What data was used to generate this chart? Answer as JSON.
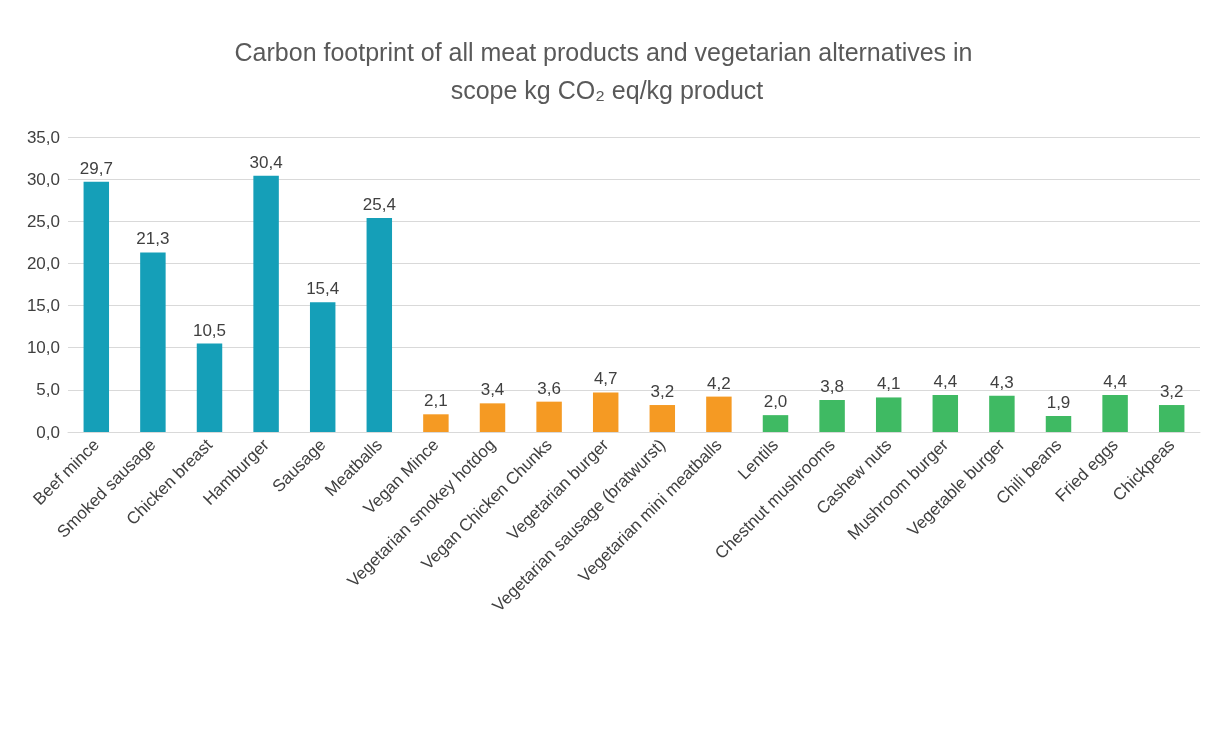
{
  "chart_data": {
    "type": "bar",
    "title": "Carbon footprint of all meat products and vegetarian alternatives in scope kg CO₂ eq/kg product",
    "categories": [
      "Beef mince",
      "Smoked sausage",
      "Chicken breast",
      "Hamburger",
      "Sausage",
      "Meatballs",
      "Vegan Mince",
      "Vegetarian smokey hotdog",
      "Vegan Chicken Chunks",
      "Vegetarian burger",
      "Vegetarian sausage (bratwurst)",
      "Vegetarian mini meatballs",
      "Lentils",
      "Chestnut mushrooms",
      "Cashew nuts",
      "Mushroom burger",
      "Vegetable burger",
      "Chili beans",
      "Fried eggs",
      "Chickpeas"
    ],
    "values": [
      29.7,
      21.3,
      10.5,
      30.4,
      15.4,
      25.4,
      2.1,
      3.4,
      3.6,
      4.7,
      3.2,
      4.2,
      2.0,
      3.8,
      4.1,
      4.4,
      4.3,
      1.9,
      4.4,
      3.2
    ],
    "value_labels": [
      "29,7",
      "21,3",
      "10,5",
      "30,4",
      "15,4",
      "25,4",
      "2,1",
      "3,4",
      "3,6",
      "4,7",
      "3,2",
      "4,2",
      "2,0",
      "3,8",
      "4,1",
      "4,4",
      "4,3",
      "1,9",
      "4,4",
      "3,2"
    ],
    "colors": [
      "#159fb8",
      "#159fb8",
      "#159fb8",
      "#159fb8",
      "#159fb8",
      "#159fb8",
      "#f59a23",
      "#f59a23",
      "#f59a23",
      "#f59a23",
      "#f59a23",
      "#f59a23",
      "#3fba63",
      "#3fba63",
      "#3fba63",
      "#3fba63",
      "#3fba63",
      "#3fba63",
      "#3fba63",
      "#3fba63"
    ],
    "ylim": [
      0,
      35
    ],
    "yticks": [
      {
        "value": 0,
        "label": "0,0"
      },
      {
        "value": 5,
        "label": "5,0"
      },
      {
        "value": 10,
        "label": "10,0"
      },
      {
        "value": 15,
        "label": "15,0"
      },
      {
        "value": 20,
        "label": "20,0"
      },
      {
        "value": 25,
        "label": "25,0"
      },
      {
        "value": 30,
        "label": "30,0"
      },
      {
        "value": 35,
        "label": "35,0"
      }
    ],
    "grid": "y"
  }
}
